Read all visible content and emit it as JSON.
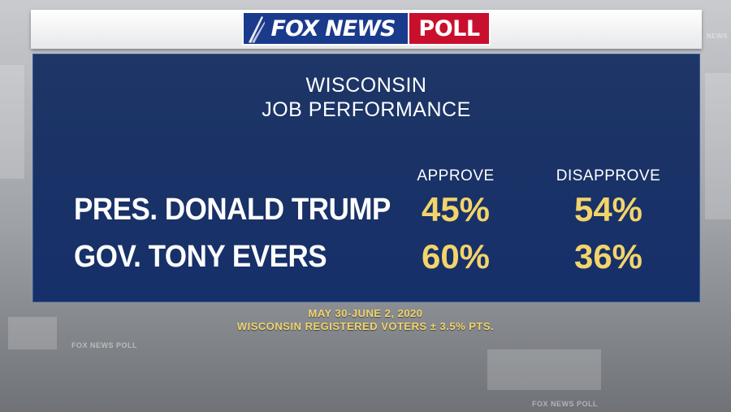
{
  "header": {
    "logo_left": "FOX NEWS",
    "logo_right": "POLL",
    "colors": {
      "fox_blue": "#1a3a8c",
      "poll_red": "#c8102e"
    }
  },
  "watermark": "FOX NEWS POLL",
  "chart_data": {
    "type": "table",
    "title": [
      "WISCONSIN",
      "JOB PERFORMANCE"
    ],
    "columns": [
      "APPROVE",
      "DISAPPROVE"
    ],
    "rows": [
      {
        "label": "PRES. DONALD TRUMP",
        "values": [
          "45%",
          "54%"
        ]
      },
      {
        "label": "GOV. TONY EVERS",
        "values": [
          "60%",
          "36%"
        ]
      }
    ],
    "value_color": "#f2d46b",
    "panel_color": "#1a3266"
  },
  "footer": {
    "line1": "MAY 30-JUNE 2, 2020",
    "line2": "WISCONSIN REGISTERED VOTERS ± 3.5% PTS."
  }
}
